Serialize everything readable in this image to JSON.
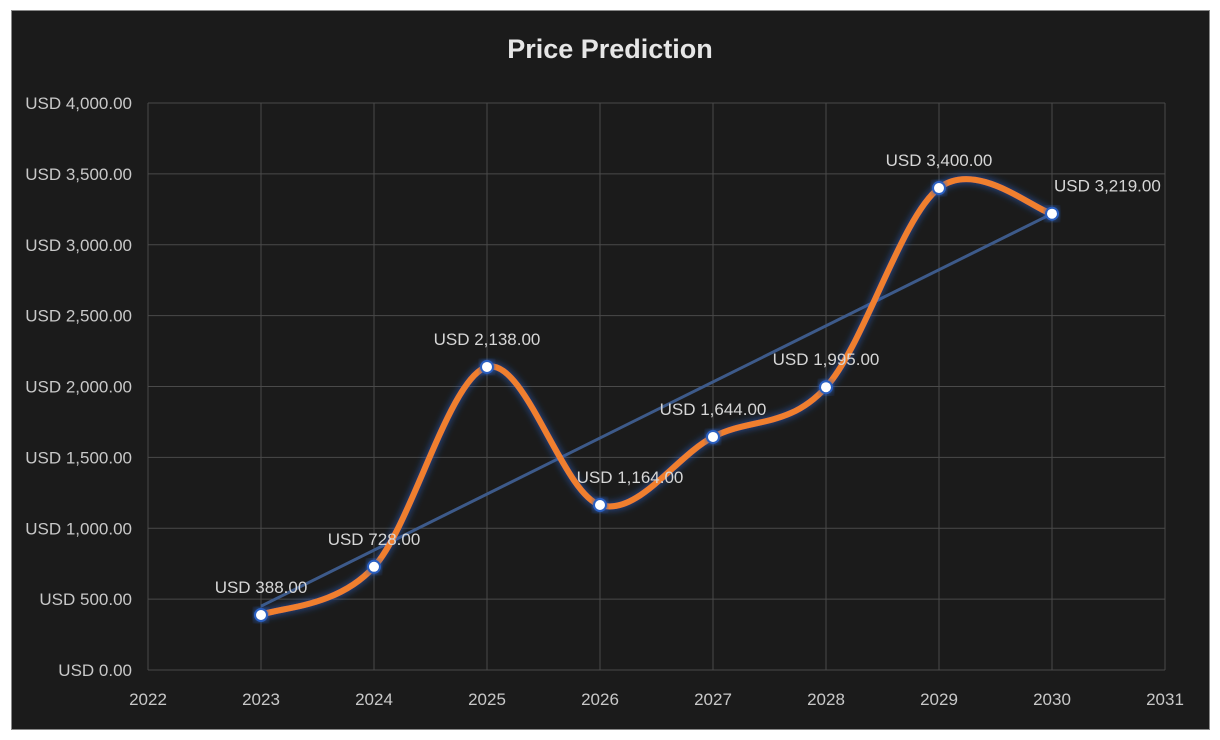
{
  "chart_data": {
    "type": "line",
    "title": "Price Prediction",
    "xlabel": "",
    "ylabel": "",
    "x": [
      2023,
      2024,
      2025,
      2026,
      2027,
      2028,
      2029,
      2030
    ],
    "series": [
      {
        "values": [
          388,
          728,
          2138,
          1164,
          1644,
          1995,
          3400,
          3219
        ],
        "color": "#f07f2e",
        "smooth": true,
        "markers": true
      }
    ],
    "data_labels": [
      "USD 388.00",
      "USD 728.00",
      "USD 2,138.00",
      "USD 1,164.00",
      "USD 1,644.00",
      "USD 1,995.00",
      "USD 3,400.00",
      "USD 3,219.00"
    ],
    "trendline": {
      "type": "linear",
      "color": "#3d5a8a"
    },
    "xlim": [
      2022,
      2031
    ],
    "ylim": [
      0,
      4000
    ],
    "x_ticks": [
      "2022",
      "2023",
      "2024",
      "2025",
      "2026",
      "2027",
      "2028",
      "2029",
      "2030",
      "2031"
    ],
    "y_ticks": [
      "USD 0.00",
      "USD 500.00",
      "USD 1,000.00",
      "USD 1,500.00",
      "USD 2,000.00",
      "USD 2,500.00",
      "USD 3,000.00",
      "USD 3,500.00",
      "USD 4,000.00"
    ],
    "grid": true,
    "background": "#1b1b1b"
  }
}
